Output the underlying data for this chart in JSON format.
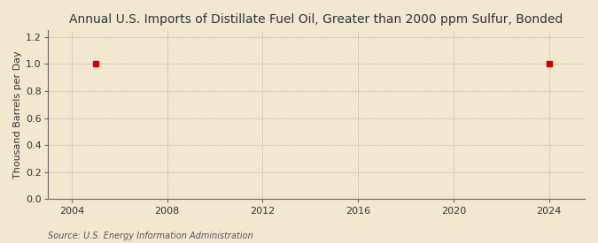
{
  "title": "Annual U.S. Imports of Distillate Fuel Oil, Greater than 2000 ppm Sulfur, Bonded",
  "ylabel": "Thousand Barrels per Day",
  "source": "Source: U.S. Energy Information Administration",
  "data_x": [
    2005,
    2024
  ],
  "data_y": [
    1.0,
    1.0
  ],
  "xlim": [
    2003.0,
    2025.5
  ],
  "ylim": [
    0.0,
    1.25
  ],
  "xticks": [
    2004,
    2008,
    2012,
    2016,
    2020,
    2024
  ],
  "yticks": [
    0.0,
    0.2,
    0.4,
    0.6,
    0.8,
    1.0,
    1.2
  ],
  "background_color": "#f2e8d0",
  "plot_background_color": "#f2e8d0",
  "marker_color": "#cc0000",
  "marker_size": 5,
  "grid_color": "#b0b0b0",
  "title_fontsize": 10,
  "axis_label_fontsize": 8,
  "tick_fontsize": 8,
  "source_fontsize": 7
}
